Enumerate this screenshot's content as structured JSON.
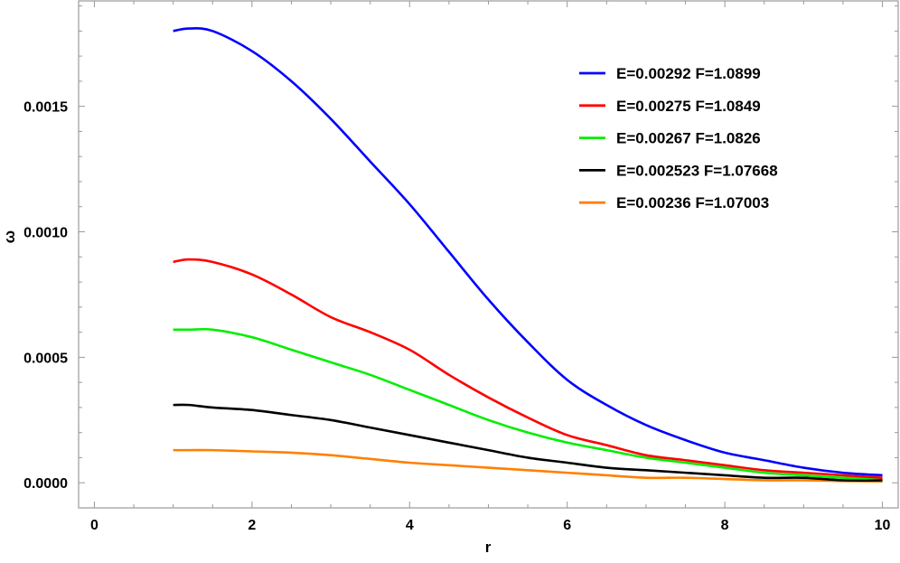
{
  "chart_data": {
    "type": "line",
    "title": "",
    "xlabel": "r",
    "ylabel": "ω",
    "xlim": [
      -0.2,
      10.2
    ],
    "ylim": [
      -0.0001,
      0.00192
    ],
    "xticks": [
      0,
      2,
      4,
      6,
      8,
      10
    ],
    "xtick_labels": [
      "0",
      "2",
      "4",
      "6",
      "8",
      "10"
    ],
    "yticks": [
      0,
      0.0005,
      0.001,
      0.0015
    ],
    "ytick_labels": [
      "0.0000",
      "0.0005",
      "0.0010",
      "0.0015"
    ],
    "grid": false,
    "legend_position": "top-right",
    "x": [
      1,
      1.2,
      1.5,
      2,
      2.5,
      3,
      3.5,
      4,
      4.5,
      5,
      5.5,
      6,
      6.5,
      7,
      7.5,
      8,
      8.5,
      9,
      9.5,
      10
    ],
    "series": [
      {
        "name": "E=0.00292 F=1.0899",
        "color": "#0000ff",
        "values": [
          0.0018,
          0.00181,
          0.0018,
          0.00172,
          0.0016,
          0.00145,
          0.00128,
          0.00111,
          0.00092,
          0.00073,
          0.00056,
          0.00041,
          0.00031,
          0.00023,
          0.00017,
          0.00012,
          9e-05,
          6e-05,
          4e-05,
          3e-05
        ]
      },
      {
        "name": "E=0.00275 F=1.0849",
        "color": "#ff0000",
        "values": [
          0.00088,
          0.00089,
          0.00088,
          0.00083,
          0.00075,
          0.00066,
          0.0006,
          0.00053,
          0.00043,
          0.00034,
          0.00026,
          0.00019,
          0.00015,
          0.00011,
          9e-05,
          7e-05,
          5e-05,
          4e-05,
          3e-05,
          2e-05
        ]
      },
      {
        "name": "E=0.00267 F=1.0826",
        "color": "#00ee00",
        "values": [
          0.00061,
          0.00061,
          0.00061,
          0.00058,
          0.00053,
          0.00048,
          0.00043,
          0.00037,
          0.00031,
          0.00025,
          0.0002,
          0.00016,
          0.00013,
          0.0001,
          8e-05,
          6e-05,
          4e-05,
          3e-05,
          2e-05,
          2e-05
        ]
      },
      {
        "name": "E=0.002523 F=1.07668",
        "color": "#000000",
        "values": [
          0.00031,
          0.00031,
          0.0003,
          0.00029,
          0.00027,
          0.00025,
          0.00022,
          0.00019,
          0.00016,
          0.00013,
          0.0001,
          8e-05,
          6e-05,
          5e-05,
          4e-05,
          3e-05,
          2e-05,
          2e-05,
          1e-05,
          1e-05
        ]
      },
      {
        "name": "E=0.00236 F=1.07003",
        "color": "#ff8000",
        "values": [
          0.00013,
          0.00013,
          0.00013,
          0.000125,
          0.00012,
          0.00011,
          9.5e-05,
          8e-05,
          7e-05,
          6e-05,
          5e-05,
          4e-05,
          3e-05,
          2e-05,
          2e-05,
          1.5e-05,
          1e-05,
          1e-05,
          7e-06,
          5e-06
        ]
      }
    ]
  }
}
